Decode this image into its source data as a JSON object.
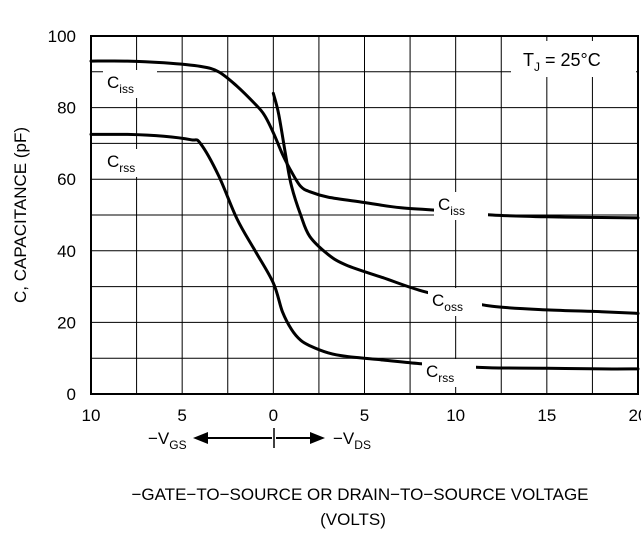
{
  "chart_data": {
    "type": "line",
    "title": "",
    "annotation": "T_J = 25°C",
    "ylabel": "C, CAPACITANCE (pF)",
    "xlabel_line1": "−GATE−TO−SOURCE OR DRAIN−TO−SOURCE VOLTAGE",
    "xlabel_line2": "(VOLTS)",
    "x_arrow_left_label": "−V",
    "x_arrow_left_sub": "GS",
    "x_arrow_right_label": "−V",
    "x_arrow_right_sub": "DS",
    "x_axis_note": "left of 0: −V_GS; right of 0: −V_DS",
    "xlim": [
      -10,
      20
    ],
    "ylim": [
      0,
      100
    ],
    "x_tick_values": [
      -10,
      -5,
      0,
      5,
      10,
      15,
      20
    ],
    "x_tick_labels": [
      "10",
      "5",
      "0",
      "5",
      "10",
      "15",
      "20"
    ],
    "y_tick_values": [
      0,
      20,
      40,
      60,
      80,
      100
    ],
    "y_tick_labels": [
      "0",
      "20",
      "40",
      "60",
      "80",
      "100"
    ],
    "grid": true,
    "series": [
      {
        "name": "C_iss",
        "label_main": "C",
        "label_sub": "iss",
        "label_side": "left",
        "x": [
          -10,
          -8,
          -6,
          -4,
          -3,
          -2,
          -1,
          -0.5,
          0,
          0.5,
          1,
          1.5,
          2,
          3,
          5,
          7,
          10,
          12,
          15,
          18,
          20
        ],
        "y": [
          93,
          93,
          92.5,
          91.5,
          90,
          86,
          81,
          78,
          73,
          67,
          62,
          58,
          56.5,
          55,
          53.5,
          52,
          51,
          50,
          49.5,
          49.3,
          49.2
        ]
      },
      {
        "name": "C_oss",
        "label_main": "C",
        "label_sub": "oss",
        "x": [
          0,
          0.3,
          0.7,
          1,
          1.5,
          2,
          3,
          4,
          6,
          8,
          10,
          12,
          15,
          18,
          20
        ],
        "y": [
          84,
          78,
          66,
          58,
          50,
          44,
          39,
          36,
          32.5,
          29,
          26.5,
          24.5,
          23.5,
          23,
          22.5
        ]
      },
      {
        "name": "C_rss",
        "label_main": "C",
        "label_sub": "rss",
        "label_side": "left",
        "x": [
          -10,
          -8,
          -6,
          -4.5,
          -4,
          -3,
          -2,
          -1,
          0,
          0.5,
          1,
          1.5,
          2,
          3,
          4,
          6,
          8,
          10,
          12,
          15,
          18,
          20
        ],
        "y": [
          72.5,
          72.5,
          72,
          71,
          70,
          61,
          49,
          40,
          31,
          23,
          18,
          15,
          13.5,
          11.5,
          10.5,
          9.5,
          8.5,
          7.8,
          7.3,
          7.2,
          7,
          7
        ]
      }
    ]
  }
}
